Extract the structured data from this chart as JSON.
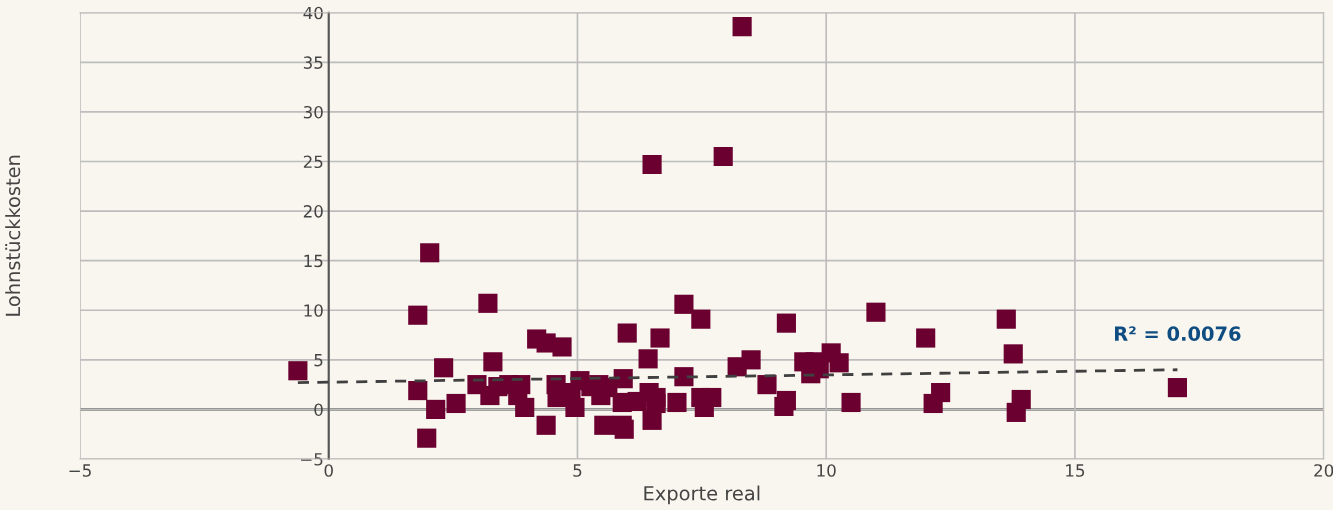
{
  "chart_data": {
    "type": "scatter",
    "xlabel": "Exporte real",
    "ylabel": "Lohnstückkosten",
    "xlim": [
      -5,
      20
    ],
    "ylim": [
      -5,
      40
    ],
    "xticks": [
      {
        "value": -5,
        "label": "−5"
      },
      0,
      5,
      10,
      15,
      20
    ],
    "yticks": [
      {
        "value": -5,
        "label": "−5"
      },
      0,
      5,
      10,
      15,
      20,
      25,
      30,
      35,
      40
    ],
    "grid": true,
    "marker": "square",
    "legend": false,
    "annotations": [
      "R² = 0.0076"
    ],
    "series": [
      {
        "color": "#6b0030",
        "x": [
          -0.62,
          1.79,
          1.79,
          2.03,
          1.97,
          2.15,
          2.31,
          2.56,
          3.2,
          3.3,
          2.98,
          3.24,
          3.4,
          3.62,
          3.8,
          3.86,
          3.94,
          4.18,
          4.37,
          4.69,
          4.37,
          4.57,
          4.59,
          4.87,
          4.95,
          5.05,
          5.27,
          5.43,
          5.47,
          5.61,
          5.53,
          5.9,
          5.94,
          5.9,
          5.92,
          6.0,
          6.2,
          6.42,
          6.44,
          6.5,
          6.5,
          6.58,
          6.58,
          6.66,
          7.0,
          7.14,
          7.14,
          7.48,
          7.55,
          7.48,
          7.7,
          7.93,
          8.31,
          8.21,
          8.49,
          8.81,
          9.15,
          9.2,
          9.2,
          9.55,
          9.69,
          9.78,
          9.86,
          10.1,
          10.26,
          10.5,
          11.0,
          12.0,
          12.15,
          12.3,
          13.62,
          13.76,
          13.82,
          13.92,
          17.06
        ],
        "values": [
          3.9,
          1.9,
          9.5,
          15.8,
          -2.9,
          0.0,
          4.2,
          0.6,
          10.7,
          4.8,
          2.5,
          1.4,
          2.3,
          2.5,
          1.4,
          2.5,
          0.2,
          7.1,
          6.7,
          6.3,
          -1.6,
          2.5,
          1.2,
          1.7,
          0.2,
          2.9,
          2.3,
          2.5,
          1.4,
          2.2,
          -1.6,
          -1.6,
          -2.0,
          0.7,
          3.1,
          7.7,
          0.8,
          5.1,
          1.7,
          -1.1,
          24.7,
          1.2,
          0.6,
          7.2,
          0.7,
          3.3,
          10.6,
          9.1,
          0.2,
          1.2,
          1.2,
          25.5,
          38.6,
          4.3,
          5.0,
          2.5,
          0.3,
          0.9,
          8.7,
          4.8,
          3.6,
          4.8,
          4.1,
          5.7,
          4.7,
          0.7,
          9.8,
          7.2,
          0.6,
          1.7,
          9.1,
          5.6,
          -0.3,
          1.0,
          2.2
        ]
      },
      {
        "type": "line",
        "color": "#404040",
        "line_style": "dashed",
        "marker": "none",
        "x": [
          -0.62,
          17.06
        ],
        "values": [
          2.7,
          4.0
        ]
      }
    ]
  }
}
